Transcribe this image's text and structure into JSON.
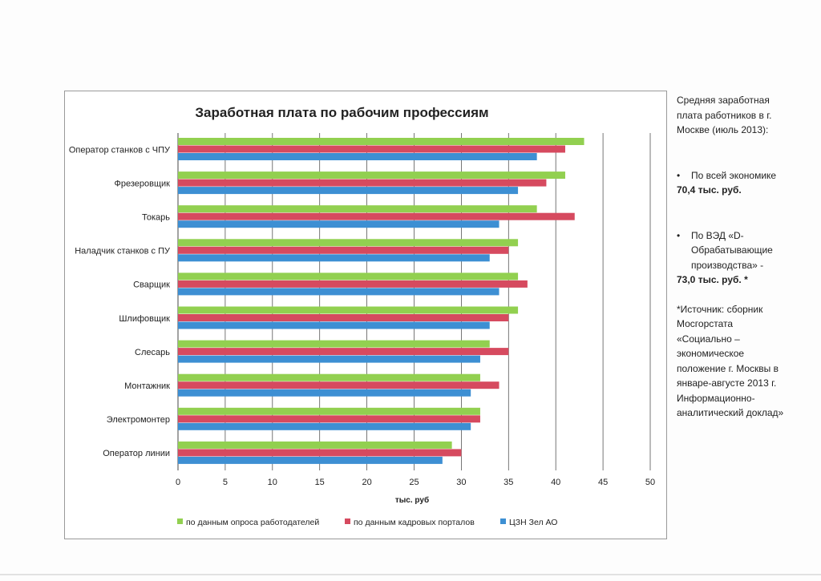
{
  "chart_data": {
    "type": "bar",
    "orientation": "horizontal",
    "title": "Заработная плата по рабочим профессиям",
    "xlabel": "тыс. руб",
    "ylabel": "",
    "xlim": [
      0,
      50
    ],
    "xticks": [
      "0",
      "5",
      "10",
      "15",
      "20",
      "25",
      "30",
      "35",
      "40",
      "45",
      "50"
    ],
    "grid": true,
    "legend_position": "bottom",
    "categories": [
      "Оператор станков с ЧПУ",
      "Фрезеровщик",
      "Токарь",
      "Наладчик станков с ПУ",
      "Сварщик",
      "Шлифовщик",
      "Слесарь",
      "Монтажник",
      "Электромонтер",
      "Оператор линии"
    ],
    "series": [
      {
        "name": "по данным опроса работодателей",
        "color": "#92d050",
        "values": [
          43,
          41,
          38,
          36,
          36,
          36,
          33,
          32,
          32,
          29
        ]
      },
      {
        "name": "по данным кадровых порталов",
        "color": "#d64a5f",
        "values": [
          41,
          39,
          42,
          35,
          37,
          35,
          35,
          34,
          32,
          30
        ]
      },
      {
        "name": "ЦЗН Зел АО",
        "color": "#3d8fd3",
        "values": [
          38,
          36,
          34,
          33,
          34,
          33,
          32,
          31,
          31,
          28
        ]
      }
    ]
  },
  "side_note": {
    "intro": "Средняя заработная плата работников в г. Москве (июль 2013):",
    "item1_text": "По всей экономике",
    "item1_value": "70,4 тыс. руб.",
    "item2_text": "По ВЭД «D-Обрабатывающие производства» -",
    "item2_value": "73,0 тыс. руб. *",
    "bullet_symbol": "•",
    "source": "*Источник: сборник Мосгорстата «Социально – экономическое положение г. Москвы в январе-августе 2013 г. Информационно-аналитический доклад»"
  }
}
